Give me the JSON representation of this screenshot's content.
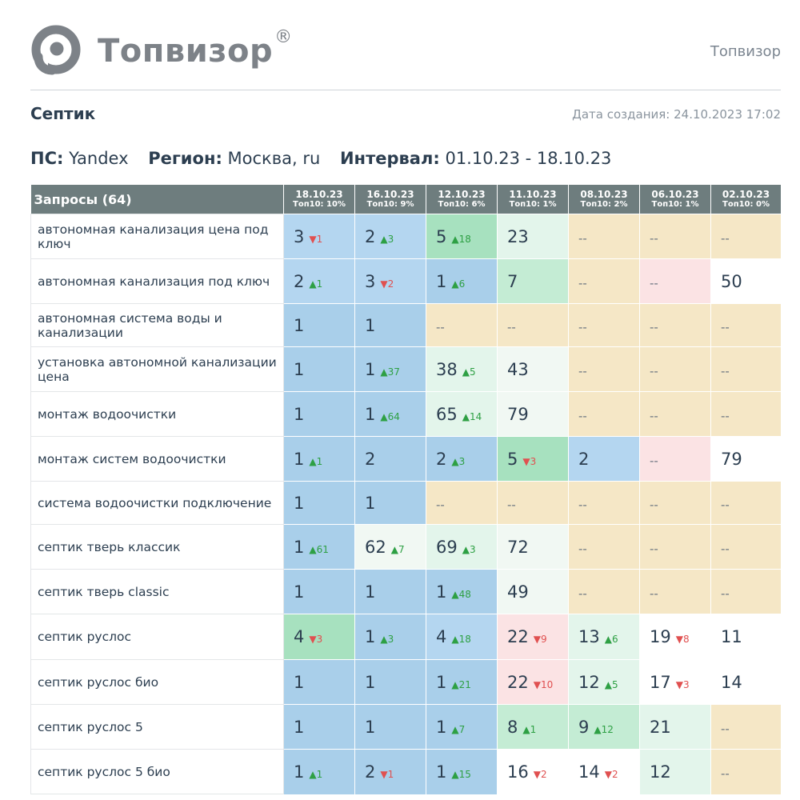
{
  "brand": {
    "name": "Топвизор",
    "reg_mark": "®",
    "right_label": "Топвизор"
  },
  "report": {
    "title": "Септик",
    "created": "Дата создания: 24.10.2023 17:02"
  },
  "params": {
    "ps_label": "ПС:",
    "ps_value": "Yandex",
    "region_label": "Регион:",
    "region_value": "Москва, ru",
    "interval_label": "Интервал:",
    "interval_value": "01.10.23 - 18.10.23"
  },
  "colors": {
    "top3": "#a9cfea",
    "top10": "#b4d6f0",
    "top5g": "#a7e1bf",
    "top10g": "#c4ecd4",
    "top30": "#e3f5eb",
    "top50": "#f1f8f3",
    "worse": "#fbe3e4",
    "none": "#f5e7c6",
    "white": "#ffffff",
    "header": "#6e7d7e"
  },
  "table": {
    "query_header": "Запросы (64)",
    "dates": [
      {
        "date": "18.10.23",
        "top": "Топ10: 10%"
      },
      {
        "date": "16.10.23",
        "top": "Топ10: 9%"
      },
      {
        "date": "12.10.23",
        "top": "Топ10: 6%"
      },
      {
        "date": "11.10.23",
        "top": "Топ10: 1%"
      },
      {
        "date": "08.10.23",
        "top": "Топ10: 2%"
      },
      {
        "date": "06.10.23",
        "top": "Топ10: 1%"
      },
      {
        "date": "02.10.23",
        "top": "Топ10: 0%"
      }
    ],
    "rows": [
      {
        "query": "автономная канализация цена под ключ",
        "height": 1,
        "cells": [
          {
            "v": "3",
            "d": "▼1",
            "dir": "down",
            "bg": "top10"
          },
          {
            "v": "2",
            "d": "▲3",
            "dir": "up",
            "bg": "top10"
          },
          {
            "v": "5",
            "d": "▲18",
            "dir": "up",
            "bg": "top5g"
          },
          {
            "v": "23",
            "d": "",
            "dir": "",
            "bg": "top30"
          },
          {
            "v": "--",
            "d": "",
            "dir": "",
            "bg": "none"
          },
          {
            "v": "--",
            "d": "",
            "dir": "",
            "bg": "none"
          },
          {
            "v": "--",
            "d": "",
            "dir": "",
            "bg": "none"
          }
        ]
      },
      {
        "query": "автономная канализация под ключ",
        "cells": [
          {
            "v": "2",
            "d": "▲1",
            "dir": "up",
            "bg": "top10"
          },
          {
            "v": "3",
            "d": "▼2",
            "dir": "down",
            "bg": "top10"
          },
          {
            "v": "1",
            "d": "▲6",
            "dir": "up",
            "bg": "top3"
          },
          {
            "v": "7",
            "d": "",
            "dir": "",
            "bg": "top10g"
          },
          {
            "v": "--",
            "d": "",
            "dir": "",
            "bg": "none"
          },
          {
            "v": "--",
            "d": "",
            "dir": "",
            "bg": "worse"
          },
          {
            "v": "50",
            "d": "",
            "dir": "",
            "bg": "white"
          }
        ]
      },
      {
        "query": "автономная система воды и канализации",
        "cells": [
          {
            "v": "1",
            "d": "",
            "dir": "",
            "bg": "top3"
          },
          {
            "v": "1",
            "d": "",
            "dir": "",
            "bg": "top3"
          },
          {
            "v": "--",
            "d": "",
            "dir": "",
            "bg": "none"
          },
          {
            "v": "--",
            "d": "",
            "dir": "",
            "bg": "none"
          },
          {
            "v": "--",
            "d": "",
            "dir": "",
            "bg": "none"
          },
          {
            "v": "--",
            "d": "",
            "dir": "",
            "bg": "none"
          },
          {
            "v": "--",
            "d": "",
            "dir": "",
            "bg": "none"
          }
        ]
      },
      {
        "query": "установка автономной канализации цена",
        "cells": [
          {
            "v": "1",
            "d": "",
            "dir": "",
            "bg": "top3"
          },
          {
            "v": "1",
            "d": "▲37",
            "dir": "up",
            "bg": "top3"
          },
          {
            "v": "38",
            "d": "▲5",
            "dir": "up",
            "bg": "top30"
          },
          {
            "v": "43",
            "d": "",
            "dir": "",
            "bg": "top50"
          },
          {
            "v": "--",
            "d": "",
            "dir": "",
            "bg": "none"
          },
          {
            "v": "--",
            "d": "",
            "dir": "",
            "bg": "none"
          },
          {
            "v": "--",
            "d": "",
            "dir": "",
            "bg": "none"
          }
        ]
      },
      {
        "query": "монтаж водоочистки",
        "cells": [
          {
            "v": "1",
            "d": "",
            "dir": "",
            "bg": "top3"
          },
          {
            "v": "1",
            "d": "▲64",
            "dir": "up",
            "bg": "top3"
          },
          {
            "v": "65",
            "d": "▲14",
            "dir": "up",
            "bg": "top30"
          },
          {
            "v": "79",
            "d": "",
            "dir": "",
            "bg": "top50"
          },
          {
            "v": "--",
            "d": "",
            "dir": "",
            "bg": "none"
          },
          {
            "v": "--",
            "d": "",
            "dir": "",
            "bg": "none"
          },
          {
            "v": "--",
            "d": "",
            "dir": "",
            "bg": "none"
          }
        ]
      },
      {
        "query": "монтаж систем водоочистки",
        "cells": [
          {
            "v": "1",
            "d": "▲1",
            "dir": "up",
            "bg": "top3"
          },
          {
            "v": "2",
            "d": "",
            "dir": "",
            "bg": "top3"
          },
          {
            "v": "2",
            "d": "▲3",
            "dir": "up",
            "bg": "top3"
          },
          {
            "v": "5",
            "d": "▼3",
            "dir": "down",
            "bg": "top5g"
          },
          {
            "v": "2",
            "d": "",
            "dir": "",
            "bg": "top10"
          },
          {
            "v": "--",
            "d": "",
            "dir": "",
            "bg": "worse"
          },
          {
            "v": "79",
            "d": "",
            "dir": "",
            "bg": "white"
          }
        ]
      },
      {
        "query": "система водоочистки подключение",
        "cells": [
          {
            "v": "1",
            "d": "",
            "dir": "",
            "bg": "top3"
          },
          {
            "v": "1",
            "d": "",
            "dir": "",
            "bg": "top3"
          },
          {
            "v": "--",
            "d": "",
            "dir": "",
            "bg": "none"
          },
          {
            "v": "--",
            "d": "",
            "dir": "",
            "bg": "none"
          },
          {
            "v": "--",
            "d": "",
            "dir": "",
            "bg": "none"
          },
          {
            "v": "--",
            "d": "",
            "dir": "",
            "bg": "none"
          },
          {
            "v": "--",
            "d": "",
            "dir": "",
            "bg": "none"
          }
        ]
      },
      {
        "query": "септик тверь классик",
        "cells": [
          {
            "v": "1",
            "d": "▲61",
            "dir": "up",
            "bg": "top3"
          },
          {
            "v": "62",
            "d": "▲7",
            "dir": "up",
            "bg": "top50"
          },
          {
            "v": "69",
            "d": "▲3",
            "dir": "up",
            "bg": "top30"
          },
          {
            "v": "72",
            "d": "",
            "dir": "",
            "bg": "top50"
          },
          {
            "v": "--",
            "d": "",
            "dir": "",
            "bg": "none"
          },
          {
            "v": "--",
            "d": "",
            "dir": "",
            "bg": "none"
          },
          {
            "v": "--",
            "d": "",
            "dir": "",
            "bg": "none"
          }
        ]
      },
      {
        "query": "септик тверь classic",
        "cells": [
          {
            "v": "1",
            "d": "",
            "dir": "",
            "bg": "top3"
          },
          {
            "v": "1",
            "d": "",
            "dir": "",
            "bg": "top3"
          },
          {
            "v": "1",
            "d": "▲48",
            "dir": "up",
            "bg": "top3"
          },
          {
            "v": "49",
            "d": "",
            "dir": "",
            "bg": "top50"
          },
          {
            "v": "--",
            "d": "",
            "dir": "",
            "bg": "none"
          },
          {
            "v": "--",
            "d": "",
            "dir": "",
            "bg": "none"
          },
          {
            "v": "--",
            "d": "",
            "dir": "",
            "bg": "none"
          }
        ]
      },
      {
        "query": "септик руслос",
        "cells": [
          {
            "v": "4",
            "d": "▼3",
            "dir": "down",
            "bg": "top5g"
          },
          {
            "v": "1",
            "d": "▲3",
            "dir": "up",
            "bg": "top3"
          },
          {
            "v": "4",
            "d": "▲18",
            "dir": "up",
            "bg": "top10"
          },
          {
            "v": "22",
            "d": "▼9",
            "dir": "down",
            "bg": "worse"
          },
          {
            "v": "13",
            "d": "▲6",
            "dir": "up",
            "bg": "top30"
          },
          {
            "v": "19",
            "d": "▼8",
            "dir": "down",
            "bg": "white"
          },
          {
            "v": "11",
            "d": "",
            "dir": "",
            "bg": "white"
          }
        ]
      },
      {
        "query": "септик руслос био",
        "cells": [
          {
            "v": "1",
            "d": "",
            "dir": "",
            "bg": "top3"
          },
          {
            "v": "1",
            "d": "",
            "dir": "",
            "bg": "top3"
          },
          {
            "v": "1",
            "d": "▲21",
            "dir": "up",
            "bg": "top3"
          },
          {
            "v": "22",
            "d": "▼10",
            "dir": "down",
            "bg": "worse"
          },
          {
            "v": "12",
            "d": "▲5",
            "dir": "up",
            "bg": "top30"
          },
          {
            "v": "17",
            "d": "▼3",
            "dir": "down",
            "bg": "white"
          },
          {
            "v": "14",
            "d": "",
            "dir": "",
            "bg": "white"
          }
        ]
      },
      {
        "query": "септик руслос 5",
        "cells": [
          {
            "v": "1",
            "d": "",
            "dir": "",
            "bg": "top3"
          },
          {
            "v": "1",
            "d": "",
            "dir": "",
            "bg": "top3"
          },
          {
            "v": "1",
            "d": "▲7",
            "dir": "up",
            "bg": "top3"
          },
          {
            "v": "8",
            "d": "▲1",
            "dir": "up",
            "bg": "top10g"
          },
          {
            "v": "9",
            "d": "▲12",
            "dir": "up",
            "bg": "top10g"
          },
          {
            "v": "21",
            "d": "",
            "dir": "",
            "bg": "top30"
          },
          {
            "v": "--",
            "d": "",
            "dir": "",
            "bg": "none"
          }
        ]
      },
      {
        "query": "септик руслос 5 био",
        "cells": [
          {
            "v": "1",
            "d": "▲1",
            "dir": "up",
            "bg": "top3"
          },
          {
            "v": "2",
            "d": "▼1",
            "dir": "down",
            "bg": "top3"
          },
          {
            "v": "1",
            "d": "▲15",
            "dir": "up",
            "bg": "top3"
          },
          {
            "v": "16",
            "d": "▼2",
            "dir": "down",
            "bg": "white"
          },
          {
            "v": "14",
            "d": "▼2",
            "dir": "down",
            "bg": "white"
          },
          {
            "v": "12",
            "d": "",
            "dir": "",
            "bg": "top30"
          },
          {
            "v": "--",
            "d": "",
            "dir": "",
            "bg": "none"
          }
        ]
      }
    ]
  }
}
